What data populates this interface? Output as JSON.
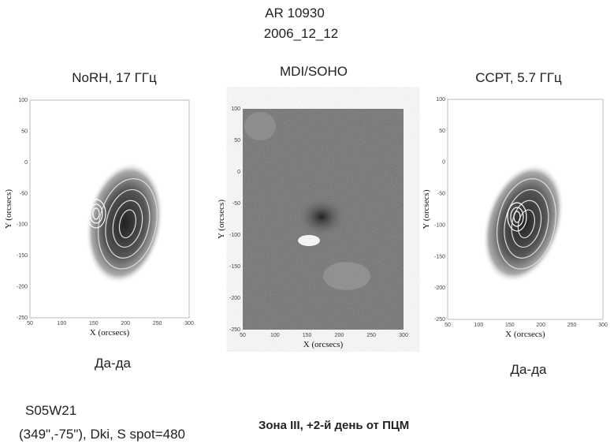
{
  "header": {
    "title": "AR 10930",
    "date": "2006_12_12"
  },
  "panels": [
    {
      "title": "NoRH, 17 ГГц",
      "x_label": "X (orcsecs)",
      "y_label": "Y (orcsecs)",
      "xticks": [
        50,
        100,
        150,
        200,
        250,
        300
      ],
      "yticks": [
        100,
        50,
        0,
        -50,
        -100,
        -150,
        -200,
        -250
      ],
      "caption": "Да-да"
    },
    {
      "title": "MDI/SOHO",
      "x_label": "X (orcsecs)",
      "y_label": "Y (orcsecs)",
      "xticks": [
        50,
        100,
        150,
        200,
        250,
        300
      ],
      "yticks": [
        100,
        50,
        0,
        -50,
        -100,
        -150,
        -200,
        -250
      ]
    },
    {
      "title": "ССРТ, 5.7 ГГц",
      "x_label": "X (orcsecs)",
      "y_label": "Y (orcsecs)",
      "xticks": [
        50,
        100,
        150,
        200,
        250,
        300
      ],
      "yticks": [
        100,
        50,
        0,
        -50,
        -100,
        -150,
        -200,
        -250
      ],
      "caption": "Да-да"
    }
  ],
  "footer": {
    "location": "S05W21",
    "details": "(349\",-75\"),  Dki, S spot=480",
    "zone": "Зона III, +2-й день от ПЦМ"
  }
}
